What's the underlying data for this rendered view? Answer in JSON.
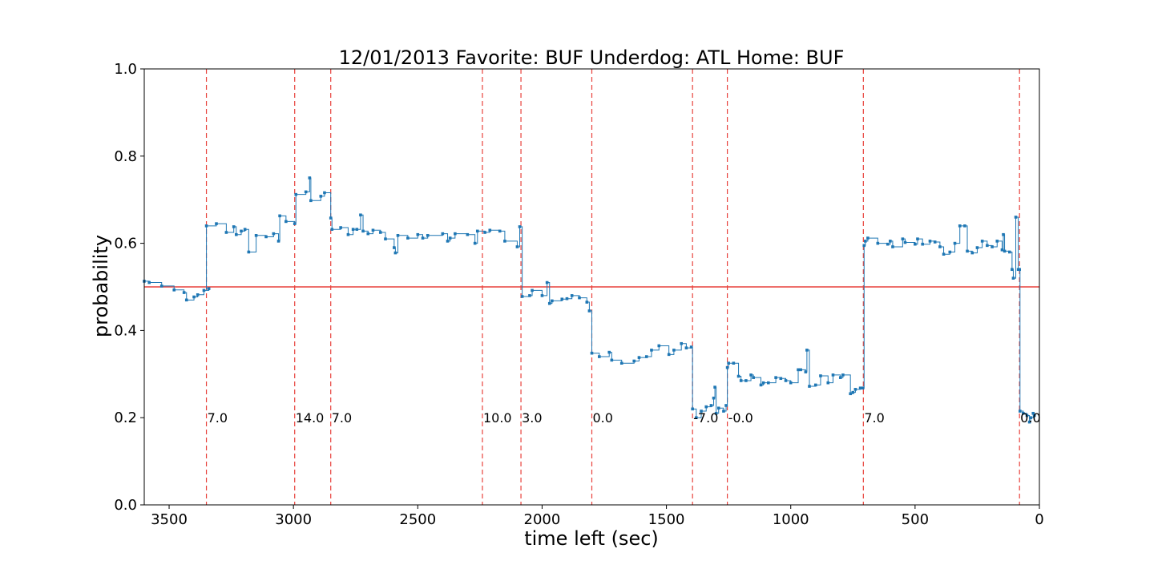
{
  "chart_data": {
    "type": "line",
    "title": "12/01/2013 Favorite: BUF Underdog: ATL Home: BUF",
    "xlabel": "time left (sec)",
    "ylabel": "probability",
    "xlim": [
      3600,
      0
    ],
    "ylim": [
      0.0,
      1.0
    ],
    "x_ticks": [
      3500,
      3000,
      2500,
      2000,
      1500,
      1000,
      500,
      0
    ],
    "y_ticks": [
      0.0,
      0.2,
      0.4,
      0.6,
      0.8,
      1.0
    ],
    "x_tick_labels": [
      "3500",
      "3000",
      "2500",
      "2000",
      "1500",
      "1000",
      "500",
      "0"
    ],
    "y_tick_labels": [
      "0.0",
      "0.2",
      "0.4",
      "0.6",
      "0.8",
      "1.0"
    ],
    "grid": false,
    "reference_line": {
      "y": 0.5,
      "color": "#e8413b"
    },
    "series": [
      {
        "color": "#1f77b4",
        "step": "post",
        "points": [
          [
            3600,
            0.513
          ],
          [
            3580,
            0.51
          ],
          [
            3530,
            0.502
          ],
          [
            3480,
            0.493
          ],
          [
            3440,
            0.487
          ],
          [
            3430,
            0.47
          ],
          [
            3400,
            0.477
          ],
          [
            3385,
            0.482
          ],
          [
            3360,
            0.492
          ],
          [
            3340,
            0.496
          ],
          [
            3350,
            0.64
          ],
          [
            3310,
            0.645
          ],
          [
            3270,
            0.625
          ],
          [
            3240,
            0.638
          ],
          [
            3230,
            0.62
          ],
          [
            3210,
            0.628
          ],
          [
            3195,
            0.632
          ],
          [
            3180,
            0.58
          ],
          [
            3150,
            0.618
          ],
          [
            3110,
            0.615
          ],
          [
            3080,
            0.622
          ],
          [
            3060,
            0.605
          ],
          [
            3055,
            0.663
          ],
          [
            3030,
            0.65
          ],
          [
            2995,
            0.645
          ],
          [
            2990,
            0.712
          ],
          [
            2950,
            0.718
          ],
          [
            2935,
            0.75
          ],
          [
            2930,
            0.698
          ],
          [
            2890,
            0.708
          ],
          [
            2875,
            0.716
          ],
          [
            2850,
            0.658
          ],
          [
            2845,
            0.632
          ],
          [
            2810,
            0.636
          ],
          [
            2780,
            0.62
          ],
          [
            2760,
            0.632
          ],
          [
            2745,
            0.632
          ],
          [
            2730,
            0.665
          ],
          [
            2720,
            0.628
          ],
          [
            2700,
            0.622
          ],
          [
            2680,
            0.63
          ],
          [
            2650,
            0.625
          ],
          [
            2630,
            0.61
          ],
          [
            2595,
            0.59
          ],
          [
            2590,
            0.578
          ],
          [
            2580,
            0.618
          ],
          [
            2540,
            0.612
          ],
          [
            2500,
            0.62
          ],
          [
            2480,
            0.612
          ],
          [
            2460,
            0.618
          ],
          [
            2400,
            0.622
          ],
          [
            2380,
            0.605
          ],
          [
            2370,
            0.612
          ],
          [
            2350,
            0.622
          ],
          [
            2300,
            0.62
          ],
          [
            2270,
            0.6
          ],
          [
            2260,
            0.628
          ],
          [
            2230,
            0.625
          ],
          [
            2210,
            0.63
          ],
          [
            2170,
            0.628
          ],
          [
            2150,
            0.605
          ],
          [
            2100,
            0.592
          ],
          [
            2090,
            0.638
          ],
          [
            2080,
            0.478
          ],
          [
            2050,
            0.48
          ],
          [
            2040,
            0.492
          ],
          [
            2000,
            0.48
          ],
          [
            1980,
            0.51
          ],
          [
            1970,
            0.462
          ],
          [
            1960,
            0.468
          ],
          [
            1920,
            0.472
          ],
          [
            1900,
            0.473
          ],
          [
            1880,
            0.48
          ],
          [
            1850,
            0.475
          ],
          [
            1820,
            0.465
          ],
          [
            1810,
            0.445
          ],
          [
            1800,
            0.348
          ],
          [
            1770,
            0.34
          ],
          [
            1730,
            0.35
          ],
          [
            1720,
            0.332
          ],
          [
            1680,
            0.325
          ],
          [
            1630,
            0.33
          ],
          [
            1610,
            0.338
          ],
          [
            1580,
            0.34
          ],
          [
            1560,
            0.355
          ],
          [
            1530,
            0.365
          ],
          [
            1490,
            0.345
          ],
          [
            1470,
            0.355
          ],
          [
            1440,
            0.37
          ],
          [
            1420,
            0.36
          ],
          [
            1400,
            0.362
          ],
          [
            1395,
            0.22
          ],
          [
            1380,
            0.2
          ],
          [
            1360,
            0.215
          ],
          [
            1340,
            0.225
          ],
          [
            1320,
            0.228
          ],
          [
            1310,
            0.245
          ],
          [
            1305,
            0.27
          ],
          [
            1300,
            0.21
          ],
          [
            1290,
            0.222
          ],
          [
            1270,
            0.215
          ],
          [
            1260,
            0.228
          ],
          [
            1255,
            0.315
          ],
          [
            1250,
            0.325
          ],
          [
            1230,
            0.325
          ],
          [
            1210,
            0.295
          ],
          [
            1200,
            0.285
          ],
          [
            1180,
            0.285
          ],
          [
            1160,
            0.298
          ],
          [
            1150,
            0.292
          ],
          [
            1120,
            0.275
          ],
          [
            1110,
            0.28
          ],
          [
            1090,
            0.28
          ],
          [
            1060,
            0.292
          ],
          [
            1040,
            0.29
          ],
          [
            1020,
            0.285
          ],
          [
            1000,
            0.28
          ],
          [
            970,
            0.31
          ],
          [
            960,
            0.31
          ],
          [
            940,
            0.305
          ],
          [
            935,
            0.355
          ],
          [
            925,
            0.272
          ],
          [
            900,
            0.275
          ],
          [
            880,
            0.296
          ],
          [
            850,
            0.28
          ],
          [
            830,
            0.298
          ],
          [
            800,
            0.292
          ],
          [
            790,
            0.298
          ],
          [
            760,
            0.255
          ],
          [
            750,
            0.258
          ],
          [
            740,
            0.265
          ],
          [
            720,
            0.268
          ],
          [
            710,
            0.268
          ],
          [
            705,
            0.595
          ],
          [
            700,
            0.605
          ],
          [
            690,
            0.612
          ],
          [
            650,
            0.6
          ],
          [
            610,
            0.598
          ],
          [
            600,
            0.605
          ],
          [
            590,
            0.592
          ],
          [
            550,
            0.61
          ],
          [
            540,
            0.602
          ],
          [
            500,
            0.598
          ],
          [
            490,
            0.61
          ],
          [
            470,
            0.598
          ],
          [
            440,
            0.605
          ],
          [
            420,
            0.603
          ],
          [
            400,
            0.592
          ],
          [
            385,
            0.575
          ],
          [
            360,
            0.58
          ],
          [
            340,
            0.6
          ],
          [
            320,
            0.64
          ],
          [
            300,
            0.64
          ],
          [
            290,
            0.582
          ],
          [
            270,
            0.578
          ],
          [
            250,
            0.59
          ],
          [
            230,
            0.605
          ],
          [
            210,
            0.595
          ],
          [
            190,
            0.592
          ],
          [
            170,
            0.605
          ],
          [
            150,
            0.585
          ],
          [
            145,
            0.62
          ],
          [
            140,
            0.582
          ],
          [
            120,
            0.58
          ],
          [
            110,
            0.54
          ],
          [
            105,
            0.52
          ],
          [
            95,
            0.66
          ],
          [
            85,
            0.54
          ],
          [
            80,
            0.54
          ],
          [
            78,
            0.215
          ],
          [
            65,
            0.21
          ],
          [
            50,
            0.205
          ],
          [
            40,
            0.19
          ],
          [
            35,
            0.2
          ],
          [
            25,
            0.21
          ],
          [
            20,
            0.205
          ]
        ]
      }
    ],
    "score_events": [
      {
        "x": 3350,
        "label": "7.0"
      },
      {
        "x": 2995,
        "label": "14.0"
      },
      {
        "x": 2850,
        "label": "7.0"
      },
      {
        "x": 2240,
        "label": "10.0"
      },
      {
        "x": 2085,
        "label": "3.0"
      },
      {
        "x": 1800,
        "label": "0.0"
      },
      {
        "x": 1395,
        "label": "-7.0"
      },
      {
        "x": 1255,
        "label": "-0.0"
      },
      {
        "x": 708,
        "label": "7.0"
      },
      {
        "x": 80,
        "label": "0.0"
      }
    ],
    "event_line_color": "#e8413b",
    "annotation_y": 0.2
  }
}
